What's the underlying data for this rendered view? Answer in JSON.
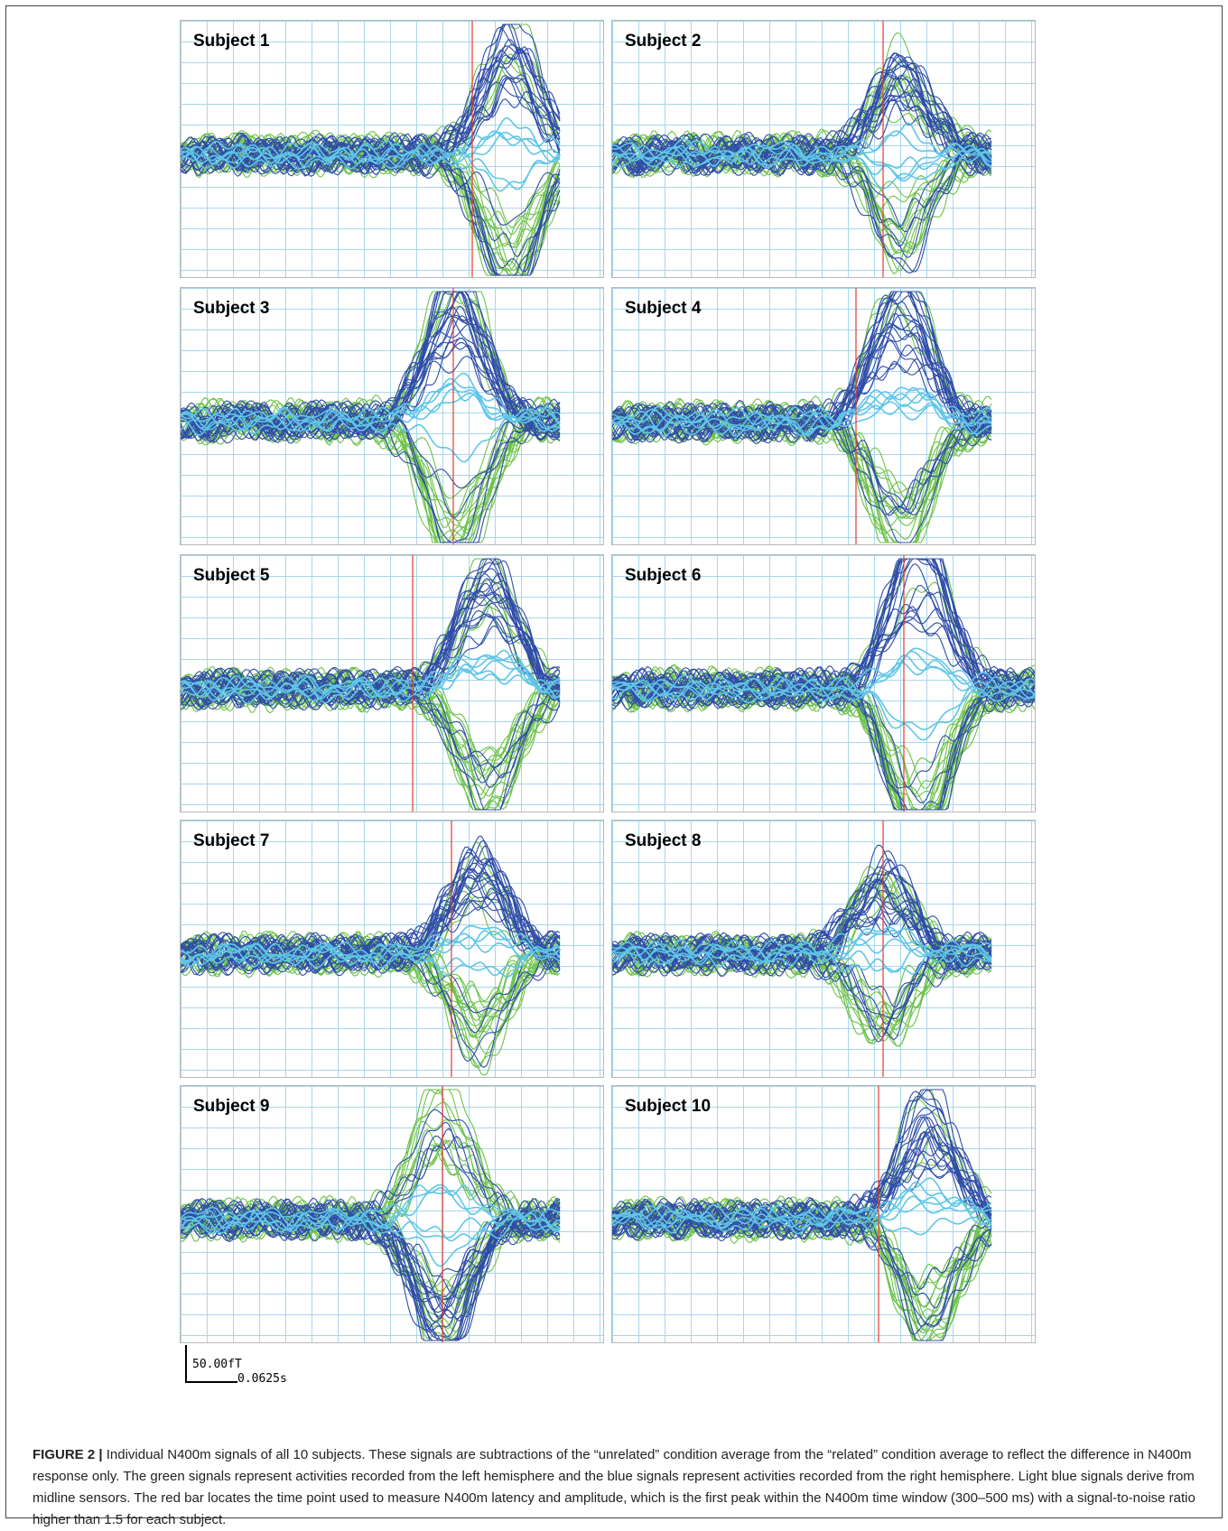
{
  "panels": [
    {
      "label": "Subject 1"
    },
    {
      "label": "Subject 2"
    },
    {
      "label": "Subject 3"
    },
    {
      "label": "Subject 4"
    },
    {
      "label": "Subject 5"
    },
    {
      "label": "Subject 6"
    },
    {
      "label": "Subject 7"
    },
    {
      "label": "Subject 8"
    },
    {
      "label": "Subject 9"
    },
    {
      "label": "Subject 10"
    }
  ],
  "scale_bar": {
    "amplitude": "50.00fT",
    "time": "0.0625s"
  },
  "caption": {
    "label": "FIGURE 2 |",
    "text": " Individual N400m signals of all 10 subjects. These signals are subtractions of the “unrelated” condition average from the “related” condition average to reflect the difference in N400m response only. The green signals represent activities recorded from the left hemisphere and the blue signals represent activities recorded from the right hemisphere. Light blue signals derive from midline sensors. The red bar locates the time point used to measure N400m latency and amplitude, which is the first peak within the N400m time window (300–500 ms) with a signal-to-noise ratio higher than 1.5 for each subject."
  },
  "colors": {
    "left_hemisphere": "#6cc24a",
    "right_hemisphere": "#2f4ca8",
    "midline": "#5fc6e8",
    "marker": "#e53b2c"
  }
}
